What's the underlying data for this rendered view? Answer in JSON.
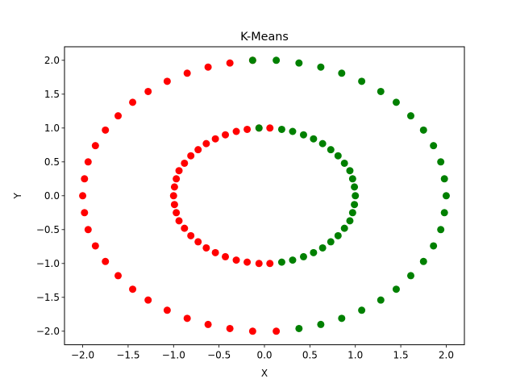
{
  "chart_data": {
    "type": "scatter",
    "title": "K-Means",
    "xlabel": "X",
    "ylabel": "Y",
    "xlim": [
      -2.2,
      2.2
    ],
    "ylim": [
      -2.2,
      2.2
    ],
    "xticks": [
      -2.0,
      -1.5,
      -1.0,
      -0.5,
      0.0,
      0.5,
      1.0,
      1.5,
      2.0
    ],
    "yticks": [
      -2.0,
      -1.5,
      -1.0,
      -0.5,
      0.0,
      0.5,
      1.0,
      1.5,
      2.0
    ],
    "xtick_labels": [
      "−2.0",
      "−1.5",
      "−1.0",
      "−0.5",
      "0.0",
      "0.5",
      "1.0",
      "1.5",
      "2.0"
    ],
    "ytick_labels": [
      "−2.0",
      "−1.5",
      "−1.0",
      "−0.5",
      "0.0",
      "0.5",
      "1.0",
      "1.5",
      "2.0"
    ],
    "grid": false,
    "colors": {
      "cluster_a": "#ff0000",
      "cluster_b": "#008000"
    },
    "series": [
      {
        "color": "#ff0000",
        "points": [
          [
            -0.13,
            2.0
          ],
          [
            -0.38,
            1.96
          ],
          [
            -0.62,
            1.9
          ],
          [
            -0.85,
            1.81
          ],
          [
            -1.07,
            1.69
          ],
          [
            -1.28,
            1.54
          ],
          [
            -1.45,
            1.38
          ],
          [
            -1.61,
            1.18
          ],
          [
            -1.75,
            0.97
          ],
          [
            -1.86,
            0.74
          ],
          [
            -1.94,
            0.5
          ],
          [
            -1.98,
            0.25
          ],
          [
            -2.0,
            0.0
          ],
          [
            -1.98,
            -0.25
          ],
          [
            -1.94,
            -0.5
          ],
          [
            -1.86,
            -0.74
          ],
          [
            -1.75,
            -0.97
          ],
          [
            -1.61,
            -1.18
          ],
          [
            -1.45,
            -1.38
          ],
          [
            -1.28,
            -1.54
          ],
          [
            -1.07,
            -1.69
          ],
          [
            -0.85,
            -1.81
          ],
          [
            -0.62,
            -1.9
          ],
          [
            -0.38,
            -1.96
          ],
          [
            -0.13,
            -2.0
          ],
          [
            0.13,
            -2.0
          ],
          [
            -0.06,
            1.0
          ],
          [
            -0.19,
            0.98
          ],
          [
            -0.31,
            0.95
          ],
          [
            -0.43,
            0.9
          ],
          [
            -0.54,
            0.84
          ],
          [
            -0.64,
            0.77
          ],
          [
            -0.73,
            0.68
          ],
          [
            -0.81,
            0.59
          ],
          [
            -0.88,
            0.48
          ],
          [
            -0.94,
            0.37
          ],
          [
            -0.97,
            0.25
          ],
          [
            -0.99,
            0.13
          ],
          [
            -1.0,
            0.0
          ],
          [
            -0.99,
            -0.13
          ],
          [
            -0.97,
            -0.25
          ],
          [
            -0.94,
            -0.37
          ],
          [
            -0.88,
            -0.48
          ],
          [
            -0.81,
            -0.59
          ],
          [
            -0.73,
            -0.68
          ],
          [
            -0.64,
            -0.77
          ],
          [
            -0.54,
            -0.84
          ],
          [
            -0.43,
            -0.9
          ],
          [
            -0.31,
            -0.95
          ],
          [
            -0.19,
            -0.98
          ],
          [
            -0.06,
            -1.0
          ],
          [
            0.06,
            -1.0
          ],
          [
            0.06,
            1.0
          ]
        ]
      },
      {
        "color": "#008000",
        "points": [
          [
            0.13,
            2.0
          ],
          [
            0.38,
            1.96
          ],
          [
            0.62,
            1.9
          ],
          [
            0.85,
            1.81
          ],
          [
            1.07,
            1.69
          ],
          [
            1.28,
            1.54
          ],
          [
            1.45,
            1.38
          ],
          [
            1.61,
            1.18
          ],
          [
            1.75,
            0.97
          ],
          [
            1.86,
            0.74
          ],
          [
            1.94,
            0.5
          ],
          [
            1.98,
            0.25
          ],
          [
            2.0,
            0.0
          ],
          [
            1.98,
            -0.25
          ],
          [
            1.94,
            -0.5
          ],
          [
            1.86,
            -0.74
          ],
          [
            1.75,
            -0.97
          ],
          [
            1.61,
            -1.18
          ],
          [
            1.45,
            -1.38
          ],
          [
            1.28,
            -1.54
          ],
          [
            1.07,
            -1.69
          ],
          [
            0.85,
            -1.81
          ],
          [
            0.62,
            -1.9
          ],
          [
            0.38,
            -1.96
          ],
          [
            -0.13,
            2.0
          ],
          [
            -0.06,
            1.0
          ],
          [
            0.19,
            0.98
          ],
          [
            0.31,
            0.95
          ],
          [
            0.43,
            0.9
          ],
          [
            0.54,
            0.84
          ],
          [
            0.64,
            0.77
          ],
          [
            0.73,
            0.68
          ],
          [
            0.81,
            0.59
          ],
          [
            0.88,
            0.48
          ],
          [
            0.94,
            0.37
          ],
          [
            0.97,
            0.25
          ],
          [
            0.99,
            0.13
          ],
          [
            1.0,
            0.0
          ],
          [
            0.99,
            -0.13
          ],
          [
            0.97,
            -0.25
          ],
          [
            0.94,
            -0.37
          ],
          [
            0.88,
            -0.48
          ],
          [
            0.81,
            -0.59
          ],
          [
            0.73,
            -0.68
          ],
          [
            0.64,
            -0.77
          ],
          [
            0.54,
            -0.84
          ],
          [
            0.43,
            -0.9
          ],
          [
            0.31,
            -0.95
          ],
          [
            0.19,
            -0.98
          ]
        ]
      }
    ]
  }
}
